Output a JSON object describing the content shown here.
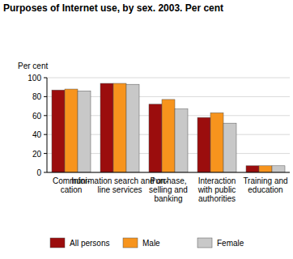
{
  "chart_data": {
    "type": "bar",
    "title": "Purposes of Internet use, by sex. 2003. Per cent",
    "y_label": "Per cent",
    "categories": [
      "Communi-\ncation",
      "Information search and on-\nline services",
      "Purchase,\nselling and\nbanking",
      "Interaction\nwith public\nauthorities",
      "Training and\neducation"
    ],
    "series": [
      {
        "name": "All persons",
        "color": "#9b0d0d",
        "values": [
          87,
          94,
          72,
          58,
          7
        ]
      },
      {
        "name": "Male",
        "color": "#f7941d",
        "values": [
          88,
          94,
          77,
          63,
          7
        ]
      },
      {
        "name": "Female",
        "color": "#c8c8c8",
        "values": [
          86,
          93,
          67,
          52,
          7
        ]
      }
    ],
    "ylim": [
      0,
      100
    ],
    "yticks": [
      0,
      20,
      40,
      60,
      80,
      100
    ],
    "grid": true,
    "legend": "bottom"
  }
}
